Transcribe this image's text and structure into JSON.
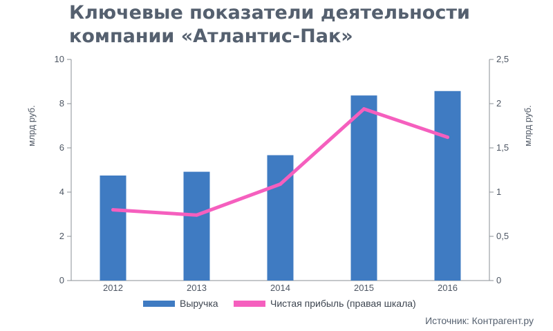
{
  "title": {
    "line1": "Ключевые показатели деятельности",
    "line2": "компании «Атлантис-Пак»"
  },
  "source": "Источник: Контрагент.ру",
  "colors": {
    "bar": "#3f7bc2",
    "line": "#f55fbe",
    "text": "#55606f",
    "axis": "#8a8f96"
  },
  "chart_data": {
    "type": "bar",
    "categories": [
      "2012",
      "2013",
      "2014",
      "2015",
      "2016"
    ],
    "series": [
      {
        "name": "Выручка",
        "type": "bar",
        "axis": "left",
        "values": [
          4.75,
          4.92,
          5.67,
          8.37,
          8.57
        ]
      },
      {
        "name": "Чистая прибыль (правая шкала)",
        "type": "line",
        "axis": "right",
        "values": [
          0.8,
          0.74,
          1.09,
          1.94,
          1.62
        ]
      }
    ],
    "ylabel": "млрд руб.",
    "y2label": "млрд руб.",
    "ylim": [
      0,
      10
    ],
    "y2lim": [
      0,
      2.5
    ],
    "yticks": [
      "0",
      "2",
      "4",
      "6",
      "8",
      "10"
    ],
    "y2ticks": [
      "0",
      "0,5",
      "1",
      "1,5",
      "2",
      "2,5"
    ],
    "grid": false,
    "legend_position": "bottom"
  }
}
